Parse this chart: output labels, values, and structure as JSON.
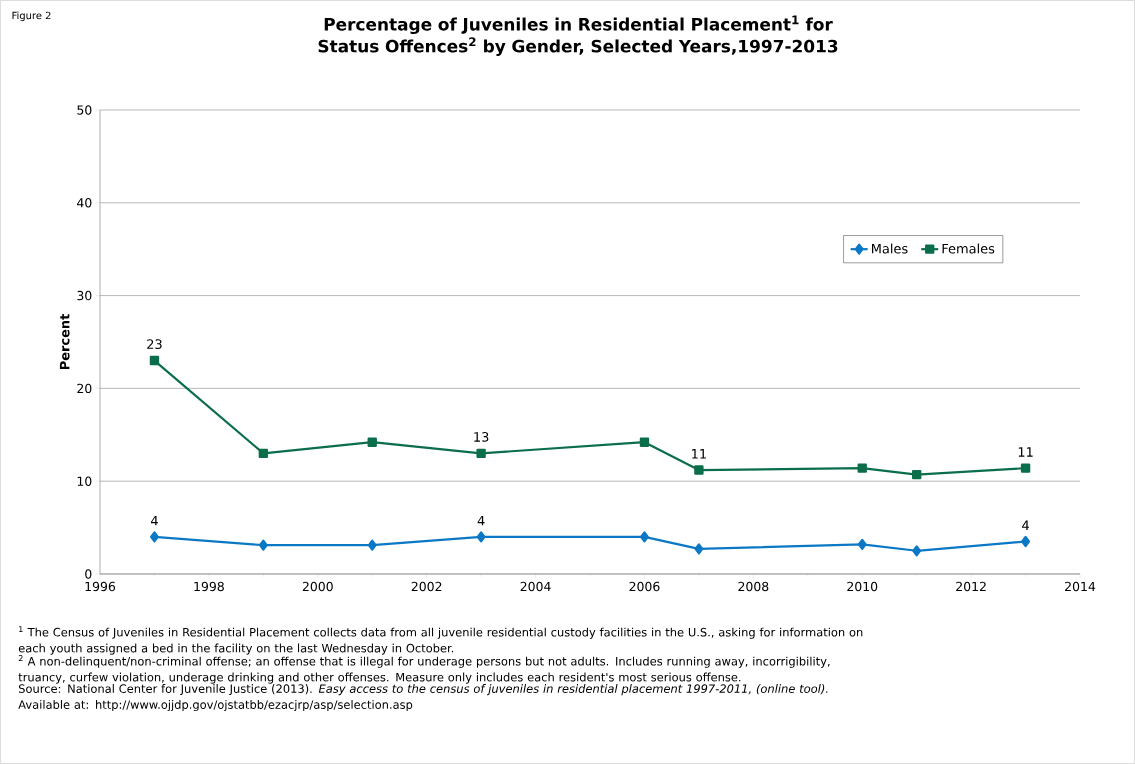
{
  "chart_data": {
    "type": "line",
    "title": "Percentage of Juveniles in Residential Placement$^{1}$ for Status Offences$^{2}$ by Gender,  Selected Years,1997-2013",
    "ylabel": "Percent",
    "x": [
      1997,
      1999,
      2001,
      2003,
      2006,
      2007,
      2010,
      2011,
      2013
    ],
    "series": [
      {
        "name": "Males",
        "color": "#0a78c4",
        "marker": "diamond",
        "values": [
          4,
          3.1,
          3.1,
          4,
          4,
          2.7,
          3.2,
          2.5,
          3.5
        ],
        "value_labels": [
          "4",
          null,
          null,
          "4",
          null,
          null,
          null,
          null,
          "4"
        ]
      },
      {
        "name": "Females",
        "color": "#0a6e4a",
        "marker": "square",
        "values": [
          23,
          13,
          14.2,
          13,
          14.2,
          11.2,
          11.4,
          10.7,
          11.4
        ],
        "value_labels": [
          "23",
          null,
          null,
          "13",
          null,
          "11",
          null,
          null,
          "11"
        ]
      }
    ],
    "xlim": [
      1996,
      2014
    ],
    "xticks": [
      1996,
      1998,
      2000,
      2002,
      2004,
      2006,
      2008,
      2010,
      2012,
      2014
    ],
    "ylim": [
      0,
      50
    ],
    "yticks": [
      0,
      10,
      20,
      30,
      40,
      50
    ],
    "grid": "y",
    "legend": "top right",
    "annotations": [
      "Figure 2",
      "$^{1}$ The Census of Juveniles in Residential Placement collects data from all juvenile residential custody facilities in the U.S., asking for information on each youth assigned a bed in the facility on the last Wednesday in October.",
      "$^{2}$ A non-delinquent/non-criminal offense; an offense that is illegal for underage persons but not adults. Includes running away, incorrigibility, truancy, curfew violation, underage drinking and other offenses. Measure only includes each resident's most serious offense.",
      "Source: National Center for Juvenile Justice (2013). *Easy access to the census of juveniles in residential placement 1997-2011, (online tool).* Available at: http://www.ojjdp.gov/ojstatbb/ezacjrp/asp/selection.asp"
    ]
  }
}
